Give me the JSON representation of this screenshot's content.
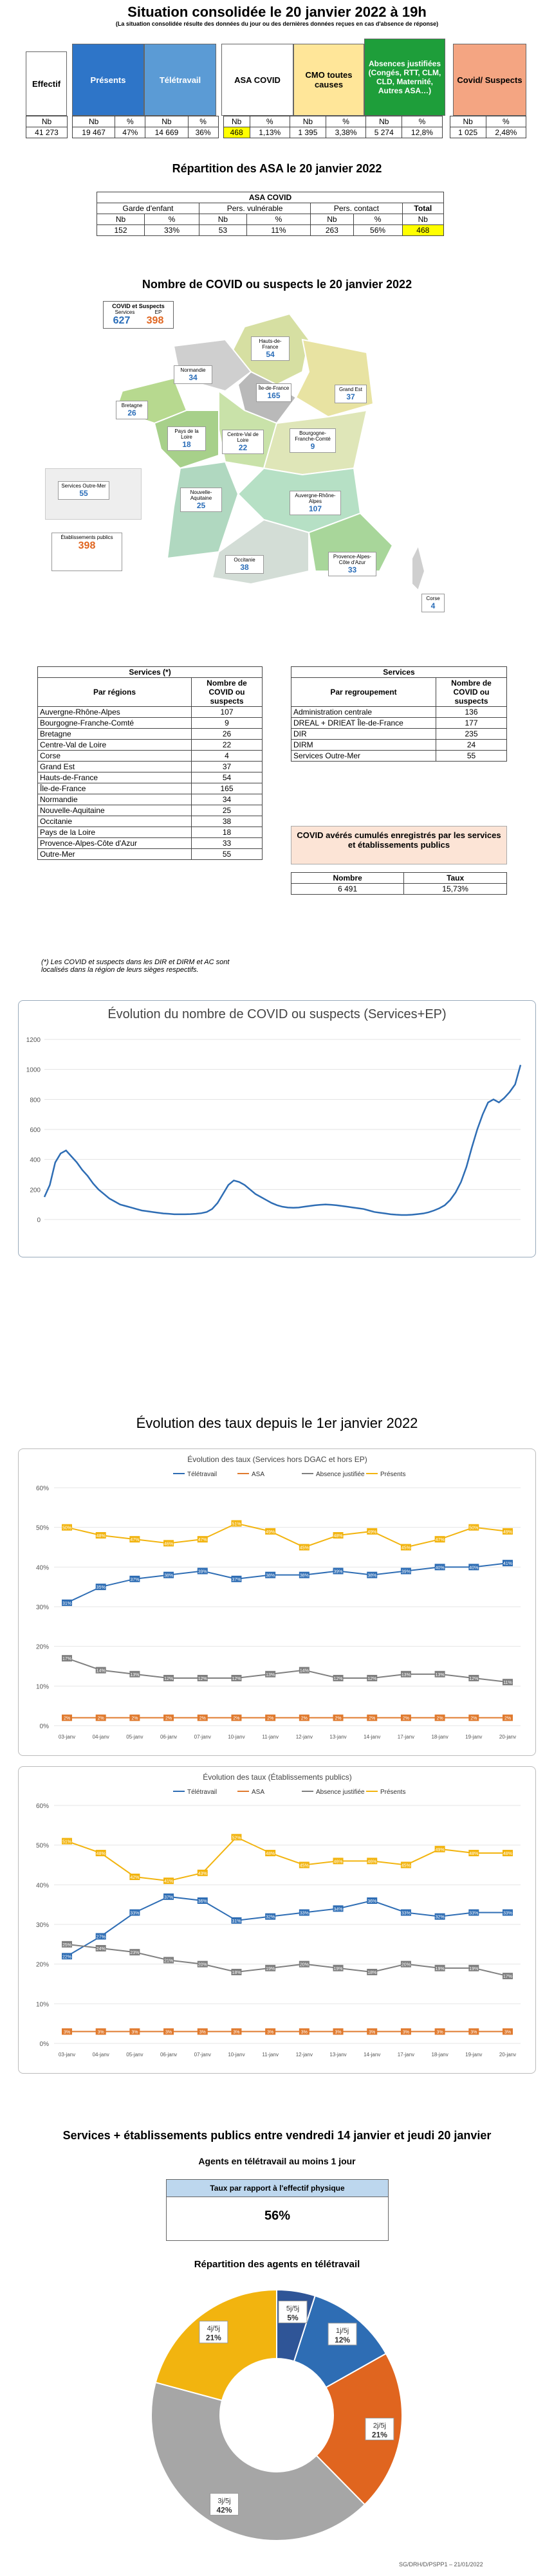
{
  "header": {
    "title": "Situation consolidée le 20 janvier 2022 à 19h",
    "subtitle": "(La situation consolidée résulte des données du jour ou des dernières données reçues en cas d'absence de réponse)"
  },
  "summary": {
    "effectif_label": "Effectif",
    "presents_label": "Présents",
    "teletravail_label": "Télétravail",
    "asa_label": "ASA COVID",
    "cmo_label": "CMO toutes causes",
    "absences_label": "Absences justifiées (Congés, RTT, CLM, CLD, Maternité, Autres ASA…)",
    "covid_label": "Covid/ Suspects",
    "nb": "Nb",
    "pct": "%",
    "effectif": "41 273",
    "presents_nb": "19 467",
    "presents_pct": "47%",
    "tele_nb": "14 669",
    "tele_pct": "36%",
    "asa_nb": "468",
    "asa_pct": "1,13%",
    "cmo_nb": "1 395",
    "cmo_pct": "3,38%",
    "abs_nb": "5 274",
    "abs_pct": "12,8%",
    "covid_nb": "1 025",
    "covid_pct": "2,48%"
  },
  "asa": {
    "title": "Répartition des ASA le 20 janvier 2022",
    "table_title": "ASA COVID",
    "h1": "Garde d'enfant",
    "h2": "Pers. vulnérable",
    "h3": "Pers. contact",
    "h4": "Total",
    "nb": "Nb",
    "pct": "%",
    "garde_nb": "152",
    "garde_pct": "33%",
    "vuln_nb": "53",
    "vuln_pct": "11%",
    "contact_nb": "263",
    "contact_pct": "56%",
    "total_nb": "Nb",
    "total_val": "468"
  },
  "map": {
    "title": "Nombre de COVID ou suspects le 20 janvier 2022",
    "legend_title": "COVID et Suspects",
    "legend_left_label": "Services",
    "legend_right_label": "EP",
    "legend_left": "627",
    "legend_right": "398",
    "outremer_label": "Services Outre-Mer",
    "outremer_val": "55",
    "ep_label": "Établissements publics",
    "ep_val": "398",
    "regions": [
      {
        "name": "Normandie",
        "val": "34"
      },
      {
        "name": "Hauts-de-France",
        "val": "54"
      },
      {
        "name": "Île-de-France",
        "val": "165"
      },
      {
        "name": "Grand Est",
        "val": "37"
      },
      {
        "name": "Bretagne",
        "val": "26"
      },
      {
        "name": "Pays de la Loire",
        "val": "18"
      },
      {
        "name": "Centre-Val de Loire",
        "val": "22"
      },
      {
        "name": "Bourgogne-Franche-Comté",
        "val": "9"
      },
      {
        "name": "Nouvelle-Aquitaine",
        "val": "25"
      },
      {
        "name": "Auvergne-Rhône-Alpes",
        "val": "107"
      },
      {
        "name": "Occitanie",
        "val": "38"
      },
      {
        "name": "Provence-Alpes-Côte d'Azur",
        "val": "33"
      },
      {
        "name": "Corse",
        "val": "4"
      }
    ]
  },
  "services_regions": {
    "title": "Services (*)",
    "col1": "Par régions",
    "col2": "Nombre de COVID ou suspects",
    "rows": [
      [
        "Auvergne-Rhône-Alpes",
        "107"
      ],
      [
        "Bourgogne-Franche-Comté",
        "9"
      ],
      [
        "Bretagne",
        "26"
      ],
      [
        "Centre-Val de Loire",
        "22"
      ],
      [
        "Corse",
        "4"
      ],
      [
        "Grand Est",
        "37"
      ],
      [
        "Hauts-de-France",
        "54"
      ],
      [
        "Île-de-France",
        "165"
      ],
      [
        "Normandie",
        "34"
      ],
      [
        "Nouvelle-Aquitaine",
        "25"
      ],
      [
        "Occitanie",
        "38"
      ],
      [
        "Pays de la Loire",
        "18"
      ],
      [
        "Provence-Alpes-Côte d'Azur",
        "33"
      ],
      [
        "Outre-Mer",
        "55"
      ]
    ],
    "footnote": "(*) Les COVID et suspects dans les DIR et DIRM et AC sont localisés dans la région de leurs sièges respectifs."
  },
  "services_groups": {
    "title": "Services",
    "col1": "Par regroupement",
    "col2": "Nombre de COVID ou suspects",
    "rows": [
      [
        "Administration centrale",
        "136"
      ],
      [
        "DREAL + DRIEAT Île-de-France",
        "177"
      ],
      [
        "DIR",
        "235"
      ],
      [
        "DIRM",
        "24"
      ],
      [
        "Services Outre-Mer",
        "55"
      ]
    ]
  },
  "cumul": {
    "title": "COVID avérés cumulés enregistrés par les services et établissements publics",
    "h1": "Nombre",
    "h2": "Taux",
    "nombre": "6 491",
    "taux": "15,73%"
  },
  "evolution": {
    "title": "Évolution du nombre de COVID ou suspects (Services+EP)",
    "y_ticks": [
      "0",
      "200",
      "400",
      "600",
      "800",
      "1000",
      "1200"
    ]
  },
  "taux_section": {
    "title": "Évolution des taux depuis le 1er janvier 2022"
  },
  "chart_data": [
    {
      "type": "line",
      "title": "Évolution du nombre de COVID ou suspects (Services+EP)",
      "ylim": [
        0,
        1200
      ],
      "y": [
        150,
        230,
        380,
        440,
        460,
        420,
        380,
        330,
        290,
        240,
        200,
        170,
        140,
        120,
        100,
        90,
        80,
        70,
        60,
        55,
        50,
        45,
        40,
        38,
        35,
        35,
        35,
        36,
        38,
        42,
        50,
        70,
        110,
        170,
        230,
        260,
        250,
        230,
        200,
        170,
        150,
        130,
        110,
        95,
        85,
        80,
        78,
        80,
        85,
        90,
        95,
        98,
        100,
        98,
        95,
        90,
        85,
        80,
        75,
        70,
        60,
        50,
        45,
        40,
        35,
        32,
        30,
        30,
        32,
        36,
        40,
        48,
        60,
        75,
        95,
        130,
        180,
        250,
        350,
        480,
        600,
        700,
        780,
        800,
        780,
        810,
        850,
        900,
        1030
      ]
    },
    {
      "type": "line",
      "title": "Évolution des taux (Services hors DGAC et hors EP)",
      "categories": [
        "03-janv",
        "04-janv",
        "05-janv",
        "06-janv",
        "07-janv",
        "10-janv",
        "11-janv",
        "12-janv",
        "13-janv",
        "14-janv",
        "17-janv",
        "18-janv",
        "19-janv",
        "20-janv"
      ],
      "ylim": [
        0,
        60
      ],
      "series": [
        {
          "name": "Télétravail",
          "values": [
            31,
            35,
            37,
            38,
            39,
            37,
            38,
            38,
            39,
            38,
            39,
            40,
            40,
            41
          ],
          "color": "#2e6db4"
        },
        {
          "name": "ASA",
          "values": [
            2,
            2,
            2,
            2,
            2,
            2,
            2,
            2,
            2,
            2,
            2,
            2,
            2,
            2
          ],
          "color": "#e07a2e"
        },
        {
          "name": "Absence justifiée",
          "values": [
            17,
            14,
            13,
            12,
            12,
            12,
            13,
            14,
            12,
            12,
            13,
            13,
            12,
            11
          ],
          "color": "#7f7f7f"
        },
        {
          "name": "Présents",
          "values": [
            50,
            48,
            47,
            46,
            47,
            51,
            49,
            45,
            48,
            49,
            45,
            47,
            50,
            49
          ],
          "color": "#f2b40f"
        }
      ]
    },
    {
      "type": "line",
      "title": "Évolution des taux (Établissements publics)",
      "categories": [
        "03-janv",
        "04-janv",
        "05-janv",
        "06-janv",
        "07-janv",
        "10-janv",
        "11-janv",
        "12-janv",
        "13-janv",
        "14-janv",
        "17-janv",
        "18-janv",
        "19-janv",
        "20-janv"
      ],
      "ylim": [
        0,
        60
      ],
      "series": [
        {
          "name": "Télétravail",
          "values": [
            22,
            27,
            33,
            37,
            36,
            31,
            32,
            33,
            34,
            36,
            33,
            32,
            33,
            33
          ],
          "color": "#2e6db4"
        },
        {
          "name": "ASA",
          "values": [
            3,
            3,
            3,
            3,
            3,
            3,
            3,
            3,
            3,
            3,
            3,
            3,
            3,
            3
          ],
          "color": "#e07a2e"
        },
        {
          "name": "Absence justifiée",
          "values": [
            25,
            24,
            23,
            21,
            20,
            18,
            19,
            20,
            19,
            18,
            20,
            19,
            19,
            17
          ],
          "color": "#7f7f7f"
        },
        {
          "name": "Présents",
          "values": [
            51,
            48,
            42,
            41,
            43,
            52,
            48,
            45,
            46,
            46,
            45,
            49,
            48,
            48
          ],
          "color": "#f2b40f"
        }
      ]
    },
    {
      "type": "pie",
      "title": "Répartition des agents en télétravail",
      "categories": [
        "1j/5j",
        "2j/5j",
        "3j/5j",
        "4j/5j",
        "5j/5j"
      ],
      "values": [
        12,
        21,
        42,
        21,
        5
      ],
      "colors": [
        "#2e6db4",
        "#e0651f",
        "#a6a6a6",
        "#f2b40f",
        "#2f5597"
      ]
    }
  ],
  "week": {
    "title": "Services + établissements publics entre vendredi 14 janvier et jeudi 20 janvier",
    "subtitle": "Agents en télétravail au moins 1 jour",
    "box_label": "Taux par rapport à l'effectif physique",
    "box_val": "56%",
    "pie_title": "Répartition des agents en télétravail",
    "labels": [
      "1j/5j",
      "2j/5j",
      "3j/5j",
      "4j/5j",
      "5j/5j"
    ],
    "pcts": [
      "12%",
      "21%",
      "42%",
      "21%",
      "5%"
    ]
  },
  "footer": "SG/DRH/D/PSPP1 – 21/01/2022"
}
